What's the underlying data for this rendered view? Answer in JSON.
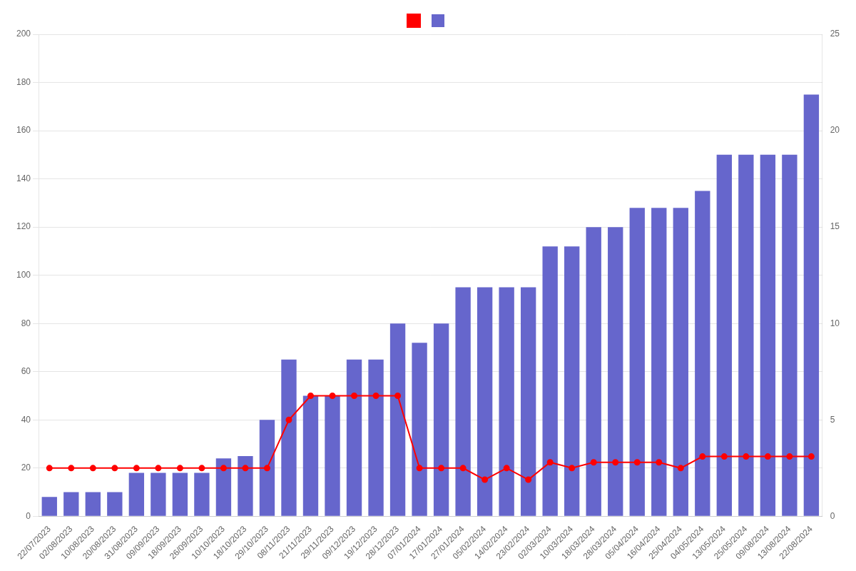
{
  "chart_data": {
    "type": "bar",
    "categories": [
      "22/07/2023",
      "02/08/2023",
      "10/08/2023",
      "20/08/2023",
      "31/08/2023",
      "09/09/2023",
      "18/09/2023",
      "26/09/2023",
      "10/10/2023",
      "18/10/2023",
      "29/10/2023",
      "08/11/2023",
      "21/11/2023",
      "29/11/2023",
      "09/12/2023",
      "19/12/2023",
      "28/12/2023",
      "07/01/2024",
      "17/01/2024",
      "27/01/2024",
      "05/02/2024",
      "14/02/2024",
      "23/02/2024",
      "02/03/2024",
      "10/03/2024",
      "18/03/2024",
      "28/03/2024",
      "05/04/2024",
      "16/04/2024",
      "25/04/2024",
      "04/05/2024",
      "13/05/2024",
      "25/05/2024",
      "09/08/2024",
      "13/08/2024",
      "22/08/2024"
    ],
    "series": [
      {
        "type": "line",
        "color": "#ff0000",
        "marker": "circle",
        "line_style": "solid",
        "axis": "y2",
        "values": [
          2.5,
          2.5,
          2.5,
          2.5,
          2.5,
          2.5,
          2.5,
          2.5,
          2.5,
          2.5,
          2.5,
          5.0,
          6.25,
          6.25,
          6.25,
          6.25,
          6.25,
          2.5,
          2.5,
          2.5,
          1.9,
          2.5,
          1.9,
          2.8,
          2.5,
          2.8,
          2.8,
          2.8,
          2.8,
          2.5,
          3.1,
          3.1,
          3.1,
          3.1,
          3.1,
          3.1
        ]
      },
      {
        "type": "bar",
        "color": "#6666cc",
        "values": [
          8,
          10,
          10,
          10,
          18,
          18,
          18,
          18,
          24,
          25,
          40,
          65,
          50,
          50,
          65,
          65,
          80,
          72,
          80,
          95,
          95,
          95,
          95,
          112,
          112,
          120,
          120,
          128,
          128,
          128,
          135,
          150,
          150,
          150,
          150,
          175
        ]
      }
    ],
    "ylim": [
      0,
      200
    ],
    "yticks": [
      0,
      20,
      40,
      60,
      80,
      100,
      120,
      140,
      160,
      180,
      200
    ],
    "y2lim": [
      0,
      25
    ],
    "y2ticks": [
      0,
      5,
      10,
      15,
      20,
      25
    ],
    "grid": true,
    "legend": "top"
  }
}
